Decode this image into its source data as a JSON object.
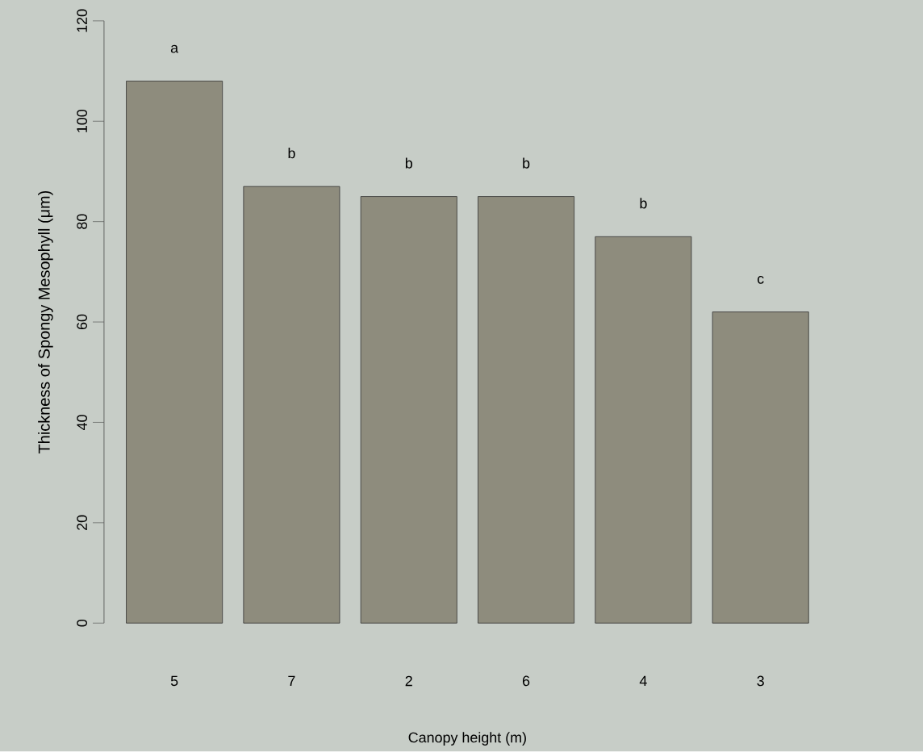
{
  "chart_data": {
    "type": "bar",
    "xlabel": "Canopy height (m)",
    "ylabel": "Thickness of Spongy Mesophyll (μm)",
    "categories": [
      "5",
      "7",
      "2",
      "6",
      "4",
      "3"
    ],
    "values": [
      108,
      87,
      85,
      85,
      77,
      62
    ],
    "color": "#8e8c7d",
    "ylim": [
      0,
      120
    ],
    "yticks": [
      0,
      20,
      40,
      60,
      80,
      100,
      120
    ],
    "grid": false,
    "annotations": [
      "a",
      "b",
      "b",
      "b",
      "b",
      "c"
    ]
  }
}
